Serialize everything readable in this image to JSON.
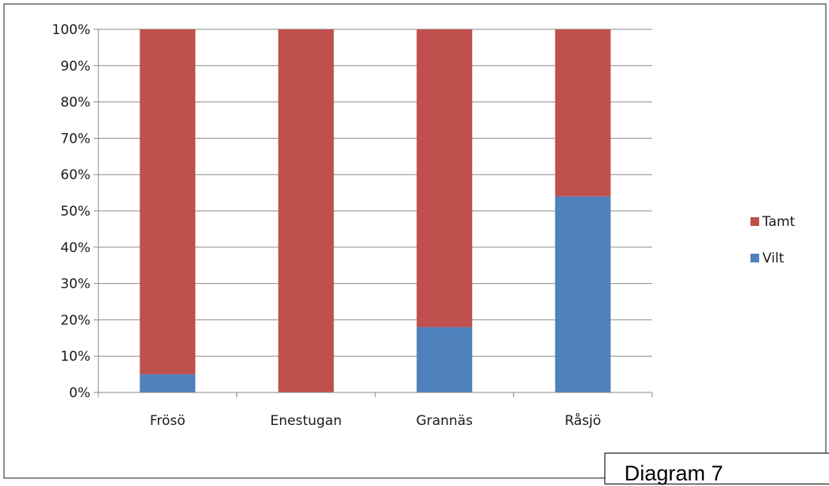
{
  "caption": "Diagram 7",
  "chart_data": {
    "type": "bar",
    "stacked": true,
    "percent_stacked": true,
    "categories": [
      "Frösö",
      "Enestugan",
      "Grannäs",
      "Råsjö"
    ],
    "series": [
      {
        "name": "Vilt",
        "color": "#4f81bd",
        "values": [
          5,
          0,
          18,
          54
        ]
      },
      {
        "name": "Tamt",
        "color": "#c0504d",
        "values": [
          95,
          100,
          82,
          46
        ]
      }
    ],
    "ylim": [
      0,
      100
    ],
    "yticks": [
      "0%",
      "10%",
      "20%",
      "30%",
      "40%",
      "50%",
      "60%",
      "70%",
      "80%",
      "90%",
      "100%"
    ],
    "legend_order": [
      "Tamt",
      "Vilt"
    ],
    "legend_position": "right",
    "grid": true
  }
}
